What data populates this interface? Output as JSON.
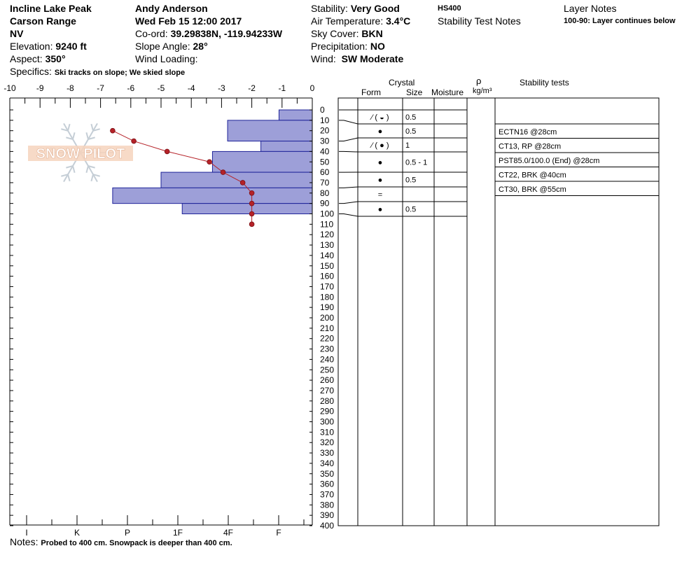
{
  "header": {
    "location": "Incline Lake Peak",
    "range": "Carson Range",
    "state": "NV",
    "elevation_label": "Elevation:",
    "elevation": "9240 ft",
    "aspect_label": "Aspect:",
    "aspect": "350°",
    "specifics_label": "Specifics:",
    "specifics": "Ski tracks on slope; We skied slope",
    "observer": "Andy Anderson",
    "datetime": "Wed Feb 15 12:00 2017",
    "coord_label": "Co-ord:",
    "coord": "39.29838N, -119.94233W",
    "slope_label": "Slope Angle:",
    "slope": "28°",
    "wind_loading_label": "Wind Loading:",
    "stability_label": "Stability:",
    "stability": "Very Good",
    "air_temp_label": "Air Temperature:",
    "air_temp": "3.4°C",
    "sky_label": "Sky Cover:",
    "sky": "BKN",
    "precip_label": "Precipitation:",
    "precip": "NO",
    "wind_label": "Wind:",
    "wind": "SW Moderate",
    "hs": "HS400",
    "stability_test_notes": "Stability Test Notes",
    "layer_notes_title": "Layer Notes",
    "layer_notes": "100-90: Layer continues below"
  },
  "columns": {
    "crystal": "Crystal",
    "form": "Form",
    "size": "Size",
    "moisture": "Moisture",
    "rho": "ρ",
    "rho_unit": "kg/m³",
    "stability_tests": "Stability tests"
  },
  "watermark": "SNOW PILOT",
  "notes_label": "Notes:",
  "notes": "Probed to 400 cm. Snowpack is deeper than 400 cm.",
  "chart_data": {
    "type": "bar",
    "x_temperature": {
      "ticks": [
        -10,
        -9,
        -8,
        -7,
        -6,
        -5,
        -4,
        -3,
        -2,
        -1,
        0
      ],
      "range": [
        -10,
        0
      ]
    },
    "x_hardness": {
      "labels": [
        "I",
        "K",
        "P",
        "1F",
        "4F",
        "F"
      ],
      "values": [
        "I",
        "K",
        "P",
        "1F",
        "4F",
        "F"
      ]
    },
    "depth_axis": {
      "range": [
        0,
        400
      ],
      "step": 10
    },
    "hardness_layers": [
      {
        "top": 0,
        "bottom": 10,
        "hardness": 1.1
      },
      {
        "top": 10,
        "bottom": 30,
        "hardness": 2.8
      },
      {
        "top": 30,
        "bottom": 40,
        "hardness": 1.7
      },
      {
        "top": 40,
        "bottom": 60,
        "hardness": 3.3
      },
      {
        "top": 60,
        "bottom": 75,
        "hardness": 5.0
      },
      {
        "top": 75,
        "bottom": 90,
        "hardness": 6.6
      },
      {
        "top": 90,
        "bottom": 100,
        "hardness": 4.3
      }
    ],
    "temperature_profile": [
      {
        "depth": 20,
        "temp": -6.6
      },
      {
        "depth": 30,
        "temp": -5.9
      },
      {
        "depth": 40,
        "temp": -4.8
      },
      {
        "depth": 50,
        "temp": -3.4
      },
      {
        "depth": 60,
        "temp": -2.95
      },
      {
        "depth": 70,
        "temp": -2.3
      },
      {
        "depth": 80,
        "temp": -2.0
      },
      {
        "depth": 90,
        "temp": -2.0
      },
      {
        "depth": 100,
        "temp": -2.0
      },
      {
        "depth": 110,
        "temp": -2.0
      }
    ],
    "crystal_rows": [
      {
        "form": "⁄ ( ◒ )",
        "size": "0.5"
      },
      {
        "form": "●",
        "size": "0.5"
      },
      {
        "form": "⁄ ( ● )",
        "size": "1"
      },
      {
        "form": "●",
        "size": "0.5 - 1"
      },
      {
        "form": "●",
        "size": "0.5"
      },
      {
        "form": "=",
        "size": ""
      },
      {
        "form": "●",
        "size": "0.5"
      }
    ],
    "stability_tests": [
      "ECTN16 @28cm",
      "CT13, RP @28cm",
      "PST85.0/100.0 (End) @28cm",
      "CT22, BRK @40cm",
      "CT30, BRK @55cm"
    ]
  }
}
